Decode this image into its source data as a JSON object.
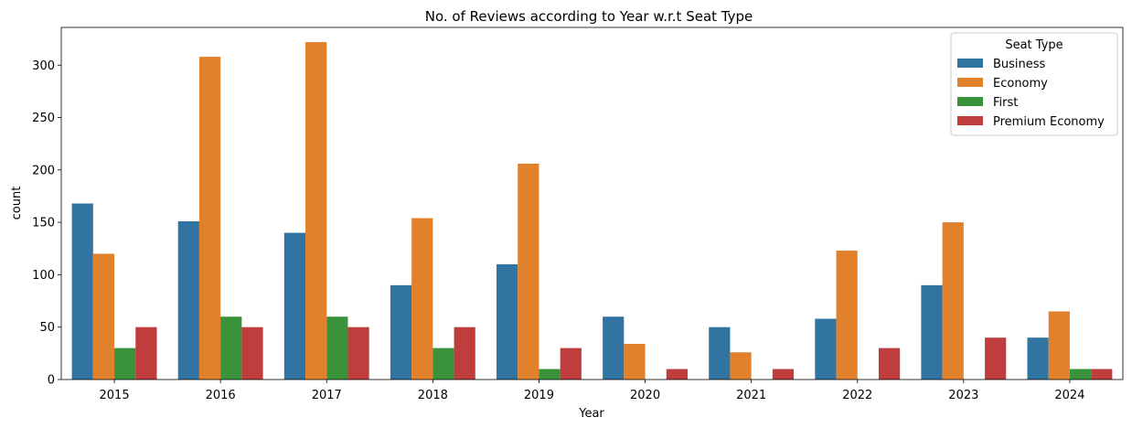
{
  "chart_data": {
    "type": "bar",
    "title": "No. of Reviews according to Year w.r.t Seat Type",
    "xlabel": "Year",
    "ylabel": "count",
    "categories": [
      "2015",
      "2016",
      "2017",
      "2018",
      "2019",
      "2020",
      "2021",
      "2022",
      "2023",
      "2024"
    ],
    "series": [
      {
        "name": "Business",
        "color": "#3274a1",
        "values": [
          168,
          151,
          140,
          90,
          110,
          60,
          50,
          58,
          90,
          40
        ]
      },
      {
        "name": "Economy",
        "color": "#e1812c",
        "values": [
          120,
          308,
          322,
          154,
          206,
          34,
          26,
          123,
          150,
          65
        ]
      },
      {
        "name": "First",
        "color": "#3a923a",
        "values": [
          30,
          60,
          60,
          30,
          10,
          0,
          0,
          0,
          0,
          10
        ]
      },
      {
        "name": "Premium Economy",
        "color": "#c03d3e",
        "values": [
          50,
          50,
          50,
          50,
          30,
          10,
          10,
          30,
          40,
          10
        ]
      }
    ],
    "ylim": [
      0,
      336
    ],
    "yticks": [
      0,
      50,
      100,
      150,
      200,
      250,
      300
    ],
    "grid": false,
    "legend": {
      "title": "Seat Type",
      "placement": "top-right"
    }
  }
}
